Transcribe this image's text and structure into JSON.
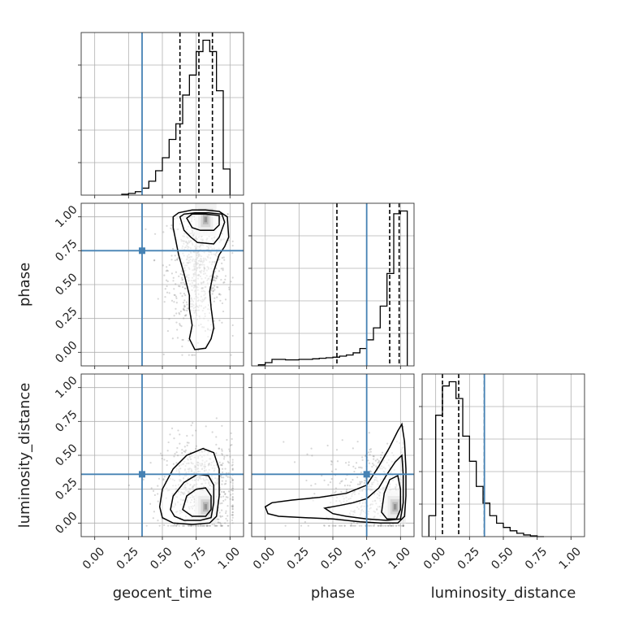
{
  "chart_data": {
    "type": "corner",
    "parameters": [
      "geocent_time",
      "phase",
      "luminosity_distance"
    ],
    "axis_labels": {
      "x": [
        "geocent_time",
        "phase",
        "luminosity_distance"
      ],
      "y_phase": "phase",
      "y_luminosity_distance": "luminosity_distance"
    },
    "tick_values": [
      0.0,
      0.25,
      0.5,
      0.75,
      1.0
    ],
    "tick_labels": [
      "0.00",
      "0.25",
      "0.50",
      "0.75",
      "1.00"
    ],
    "xlim": {
      "geocent_time": [
        -0.1,
        1.1
      ],
      "phase": [
        -0.1,
        1.1
      ],
      "luminosity_distance": [
        -0.1,
        1.1
      ]
    },
    "ylim": {
      "phase": [
        -0.1,
        1.1
      ],
      "luminosity_distance": [
        -0.1,
        1.1
      ]
    },
    "truths": {
      "geocent_time": 0.35,
      "phase": 0.75,
      "luminosity_distance": 0.36
    },
    "colors": {
      "truth": "#4682b4",
      "hist": "#000000",
      "grid": "#b0b0b0",
      "points": "#8c8c8c"
    },
    "grid": true,
    "histograms": {
      "geocent_time": {
        "bin_edges": [
          0.2,
          0.25,
          0.3,
          0.35,
          0.4,
          0.45,
          0.5,
          0.55,
          0.6,
          0.65,
          0.7,
          0.75,
          0.8,
          0.85,
          0.9,
          0.95,
          1.0
        ],
        "counts": [
          1,
          2,
          4,
          8,
          16,
          28,
          43,
          64,
          82,
          115,
          138,
          165,
          178,
          165,
          120,
          30
        ],
        "quantiles": [
          0.63,
          0.77,
          0.87
        ]
      },
      "phase": {
        "bin_edges": [
          -0.05,
          0.0,
          0.05,
          0.1,
          0.15,
          0.2,
          0.25,
          0.3,
          0.35,
          0.4,
          0.45,
          0.5,
          0.55,
          0.6,
          0.65,
          0.7,
          0.75,
          0.8,
          0.85,
          0.9,
          0.95,
          1.0,
          1.05
        ],
        "counts": [
          2,
          6,
          12,
          12,
          11,
          11,
          12,
          12,
          13,
          14,
          15,
          16,
          18,
          20,
          24,
          32,
          48,
          70,
          110,
          170,
          280,
          285
        ],
        "quantiles": [
          0.53,
          0.92,
          0.99
        ]
      },
      "luminosity_distance": {
        "bin_edges": [
          -0.05,
          0.0,
          0.05,
          0.1,
          0.15,
          0.2,
          0.25,
          0.3,
          0.35,
          0.4,
          0.45,
          0.5,
          0.55,
          0.6,
          0.65,
          0.7,
          0.75,
          0.8
        ],
        "counts": [
          25,
          145,
          180,
          185,
          165,
          120,
          90,
          60,
          40,
          25,
          16,
          11,
          7,
          4,
          2,
          1,
          0
        ],
        "quantiles": [
          0.05,
          0.17,
          0.36
        ]
      }
    },
    "joint_panels": [
      {
        "x": "geocent_time",
        "y": "phase",
        "scatter_center": [
          0.76,
          0.62
        ],
        "scatter_spread": [
          0.11,
          0.25
        ],
        "density_peak": [
          0.82,
          0.98
        ],
        "contours": [
          [
            [
              0.58,
              1.0
            ],
            [
              0.62,
              1.03
            ],
            [
              0.72,
              1.05
            ],
            [
              0.82,
              1.05
            ],
            [
              0.92,
              1.04
            ],
            [
              0.98,
              1.0
            ],
            [
              0.99,
              0.85
            ],
            [
              0.96,
              0.78
            ],
            [
              0.92,
              0.72
            ],
            [
              0.88,
              0.6
            ],
            [
              0.85,
              0.45
            ],
            [
              0.86,
              0.33
            ],
            [
              0.88,
              0.18
            ],
            [
              0.86,
              0.1
            ],
            [
              0.82,
              0.03
            ],
            [
              0.74,
              0.02
            ],
            [
              0.7,
              0.1
            ],
            [
              0.72,
              0.2
            ],
            [
              0.7,
              0.32
            ],
            [
              0.7,
              0.42
            ],
            [
              0.66,
              0.58
            ],
            [
              0.62,
              0.72
            ],
            [
              0.6,
              0.82
            ],
            [
              0.58,
              0.92
            ]
          ],
          [
            [
              0.63,
              1.0
            ],
            [
              0.66,
              1.02
            ],
            [
              0.74,
              1.03
            ],
            [
              0.84,
              1.03
            ],
            [
              0.94,
              1.02
            ],
            [
              0.96,
              0.96
            ],
            [
              0.92,
              0.85
            ],
            [
              0.88,
              0.8
            ],
            [
              0.76,
              0.81
            ],
            [
              0.71,
              0.85
            ],
            [
              0.66,
              0.9
            ]
          ],
          [
            [
              0.68,
              0.99
            ],
            [
              0.72,
              1.02
            ],
            [
              0.82,
              1.02
            ],
            [
              0.92,
              1.01
            ],
            [
              0.92,
              0.94
            ],
            [
              0.88,
              0.9
            ],
            [
              0.78,
              0.9
            ],
            [
              0.72,
              0.92
            ]
          ]
        ]
      },
      {
        "x": "geocent_time",
        "y": "luminosity_distance",
        "scatter_center": [
          0.78,
          0.25
        ],
        "scatter_spread": [
          0.14,
          0.18
        ],
        "density_peak": [
          0.82,
          0.12
        ],
        "contours": [
          [
            [
              0.48,
              0.12
            ],
            [
              0.5,
              0.25
            ],
            [
              0.58,
              0.4
            ],
            [
              0.68,
              0.5
            ],
            [
              0.8,
              0.55
            ],
            [
              0.88,
              0.52
            ],
            [
              0.92,
              0.4
            ],
            [
              0.92,
              0.2
            ],
            [
              0.9,
              0.05
            ],
            [
              0.85,
              0.0
            ],
            [
              0.72,
              -0.01
            ],
            [
              0.58,
              0.0
            ],
            [
              0.5,
              0.04
            ]
          ],
          [
            [
              0.56,
              0.1
            ],
            [
              0.58,
              0.2
            ],
            [
              0.66,
              0.3
            ],
            [
              0.76,
              0.36
            ],
            [
              0.84,
              0.35
            ],
            [
              0.88,
              0.28
            ],
            [
              0.88,
              0.15
            ],
            [
              0.86,
              0.04
            ],
            [
              0.78,
              0.02
            ],
            [
              0.66,
              0.02
            ],
            [
              0.59,
              0.05
            ]
          ],
          [
            [
              0.65,
              0.1
            ],
            [
              0.68,
              0.2
            ],
            [
              0.75,
              0.25
            ],
            [
              0.82,
              0.26
            ],
            [
              0.86,
              0.2
            ],
            [
              0.86,
              0.1
            ],
            [
              0.82,
              0.05
            ],
            [
              0.72,
              0.05
            ]
          ]
        ]
      },
      {
        "x": "phase",
        "y": "luminosity_distance",
        "scatter_center": [
          0.88,
          0.22
        ],
        "scatter_spread": [
          0.22,
          0.18
        ],
        "density_peak": [
          0.96,
          0.12
        ],
        "contours": [
          [
            [
              0.0,
              0.12
            ],
            [
              0.05,
              0.15
            ],
            [
              0.2,
              0.17
            ],
            [
              0.4,
              0.19
            ],
            [
              0.6,
              0.22
            ],
            [
              0.75,
              0.28
            ],
            [
              0.84,
              0.42
            ],
            [
              0.92,
              0.56
            ],
            [
              0.98,
              0.68
            ],
            [
              1.01,
              0.73
            ],
            [
              1.03,
              0.6
            ],
            [
              1.04,
              0.4
            ],
            [
              1.04,
              0.2
            ],
            [
              1.03,
              0.05
            ],
            [
              0.98,
              0.0
            ],
            [
              0.85,
              0.0
            ],
            [
              0.7,
              0.01
            ],
            [
              0.5,
              0.03
            ],
            [
              0.3,
              0.04
            ],
            [
              0.1,
              0.05
            ],
            [
              0.02,
              0.07
            ]
          ],
          [
            [
              0.44,
              0.11
            ],
            [
              0.55,
              0.13
            ],
            [
              0.65,
              0.15
            ],
            [
              0.75,
              0.18
            ],
            [
              0.84,
              0.26
            ],
            [
              0.9,
              0.36
            ],
            [
              0.96,
              0.45
            ],
            [
              1.01,
              0.5
            ],
            [
              1.02,
              0.35
            ],
            [
              1.02,
              0.15
            ],
            [
              1.0,
              0.03
            ],
            [
              0.9,
              0.02
            ],
            [
              0.75,
              0.03
            ],
            [
              0.6,
              0.05
            ],
            [
              0.5,
              0.07
            ]
          ],
          [
            [
              0.86,
              0.08
            ],
            [
              0.88,
              0.22
            ],
            [
              0.92,
              0.32
            ],
            [
              0.98,
              0.35
            ],
            [
              1.0,
              0.25
            ],
            [
              1.0,
              0.1
            ],
            [
              0.97,
              0.03
            ],
            [
              0.9,
              0.03
            ]
          ]
        ]
      }
    ]
  }
}
